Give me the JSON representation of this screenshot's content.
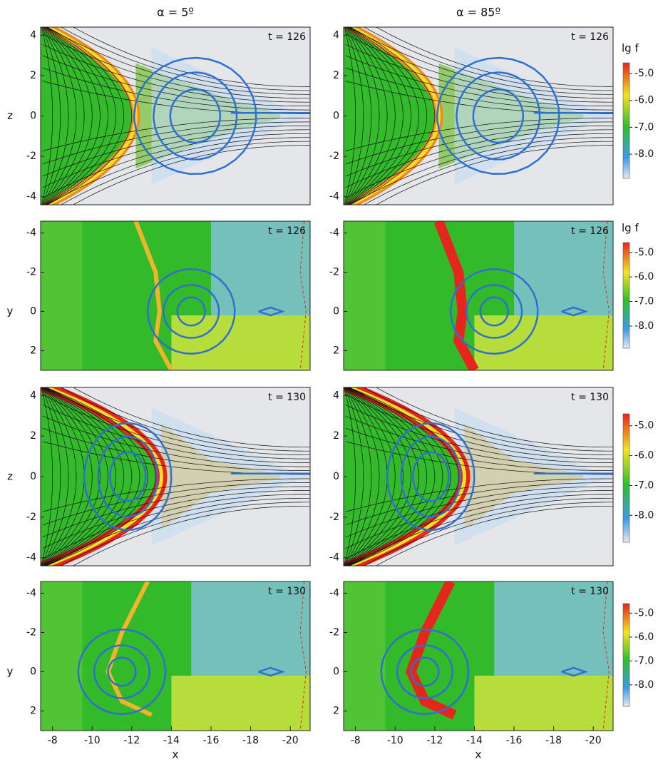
{
  "chart_data": [
    {
      "type": "heatmap",
      "title": "α = 5º",
      "annotation": "t = 126",
      "ylabel": "z",
      "xlim": [
        -7.4,
        -21
      ],
      "ylim": [
        -4.4,
        4.4
      ],
      "yticks": [
        -4,
        -2,
        0,
        2,
        4
      ]
    },
    {
      "type": "heatmap",
      "title": "α = 85º",
      "annotation": "t = 126",
      "xlim": [
        -7.4,
        -21
      ],
      "ylim": [
        -4.4,
        4.4
      ],
      "yticks": [
        -4,
        -2,
        0,
        2,
        4
      ],
      "colorbar": {
        "label": "lg f",
        "lim": [
          -8.9,
          -4.6
        ],
        "ticks": [
          {
            "value": -5,
            "label": "-5.0"
          },
          {
            "value": -6,
            "label": "-6.0"
          },
          {
            "value": -7,
            "label": "-7.0"
          },
          {
            "value": -8,
            "label": "-8.0"
          }
        ],
        "colors": [
          "#e8e8ec",
          "#3d9be9",
          "#2fbf2a",
          "#f5e31e",
          "#e8241b"
        ]
      }
    },
    {
      "type": "heatmap",
      "annotation": "t = 126",
      "ylabel": "y",
      "xlim": [
        -7.4,
        -21
      ],
      "ylim": [
        3,
        -4.6
      ],
      "yticks": [
        -4,
        -2,
        0,
        2
      ]
    },
    {
      "type": "heatmap",
      "annotation": "t = 126",
      "xlim": [
        -7.4,
        -21
      ],
      "ylim": [
        3,
        -4.6
      ],
      "yticks": [
        -4,
        -2,
        0,
        2
      ],
      "colorbar": {
        "label": "lg f",
        "lim": [
          -8.9,
          -4.6
        ],
        "ticks": [
          {
            "value": -5,
            "label": "-5.0"
          },
          {
            "value": -6,
            "label": "-6.0"
          },
          {
            "value": -7,
            "label": "-7.0"
          },
          {
            "value": -8,
            "label": "-8.0"
          }
        ],
        "colors": [
          "#e8e8ec",
          "#3d9be9",
          "#2fbf2a",
          "#f5e31e",
          "#e8241b"
        ]
      }
    },
    {
      "type": "heatmap",
      "annotation": "t = 130",
      "ylabel": "z",
      "xlim": [
        -7.4,
        -21
      ],
      "ylim": [
        -4.4,
        4.4
      ],
      "yticks": [
        -4,
        -2,
        0,
        2,
        4
      ]
    },
    {
      "type": "heatmap",
      "annotation": "t = 130",
      "xlim": [
        -7.4,
        -21
      ],
      "ylim": [
        -4.4,
        4.4
      ],
      "yticks": [
        -4,
        -2,
        0,
        2,
        4
      ],
      "colorbar": {
        "lim": [
          -8.9,
          -4.6
        ],
        "ticks": [
          {
            "value": -5,
            "label": "-5.0"
          },
          {
            "value": -6,
            "label": "-6.0"
          },
          {
            "value": -7,
            "label": "-7.0"
          },
          {
            "value": -8,
            "label": "-8.0"
          }
        ],
        "colors": [
          "#e8e8ec",
          "#3d9be9",
          "#2fbf2a",
          "#f5e31e",
          "#e8241b"
        ]
      }
    },
    {
      "type": "heatmap",
      "annotation": "t = 130",
      "ylabel": "y",
      "xlabel": "x",
      "xlim": [
        -7.4,
        -21
      ],
      "ylim": [
        3,
        -4.6
      ],
      "yticks": [
        -4,
        -2,
        0,
        2
      ],
      "xticks": [
        -8,
        -10,
        -12,
        -14,
        -16,
        -18,
        -20
      ]
    },
    {
      "type": "heatmap",
      "annotation": "t = 130",
      "xlabel": "x",
      "xlim": [
        -7.4,
        -21
      ],
      "ylim": [
        3,
        -4.6
      ],
      "yticks": [
        -4,
        -2,
        0,
        2
      ],
      "xticks": [
        -8,
        -10,
        -12,
        -14,
        -16,
        -18,
        -20
      ],
      "colorbar": {
        "lim": [
          -8.9,
          -4.6
        ],
        "ticks": [
          {
            "value": -5,
            "label": "-5.0"
          },
          {
            "value": -6,
            "label": "-6.0"
          },
          {
            "value": -7,
            "label": "-7.0"
          },
          {
            "value": -8,
            "label": "-8.0"
          }
        ],
        "colors": [
          "#e8e8ec",
          "#3d9be9",
          "#2fbf2a",
          "#f5e31e",
          "#e8241b"
        ]
      }
    }
  ]
}
